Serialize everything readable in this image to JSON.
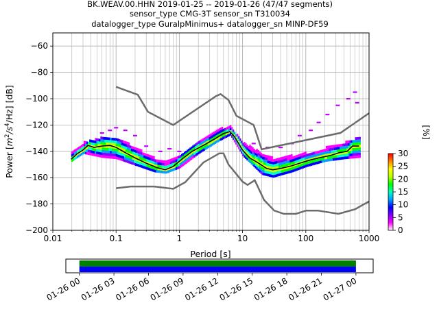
{
  "chart_data": {
    "type": "heatmap",
    "title_lines": [
      "BK.WEAV.00.HHN   2019-01-25 -- 2019-01-26  (47/47 segments)",
      "sensor_type CMG-3T sensor_sn T310034",
      "datalogger_type GuralpMinimus+ datalogger_sn MINP-DF59"
    ],
    "xlabel": "Period [s]",
    "ylabel_parts": {
      "pre": "Power [",
      "m": "m",
      "s": "/s",
      "hz": "/Hz] [dB]",
      "exp": "2",
      "exp4": "4"
    },
    "x_scale": "log",
    "xlim": [
      0.01,
      1000
    ],
    "ylim": [
      -200,
      -50
    ],
    "x_ticks": [
      {
        "value": 0.01,
        "label": "0.01"
      },
      {
        "value": 0.1,
        "label": "0.1"
      },
      {
        "value": 1,
        "label": "1"
      },
      {
        "value": 10,
        "label": "10"
      },
      {
        "value": 100,
        "label": "100"
      },
      {
        "value": 1000,
        "label": "1000"
      }
    ],
    "y_ticks": [
      {
        "value": -60,
        "label": "−60"
      },
      {
        "value": -80,
        "label": "−80"
      },
      {
        "value": -100,
        "label": "−100"
      },
      {
        "value": -120,
        "label": "−120"
      },
      {
        "value": -140,
        "label": "−140"
      },
      {
        "value": -160,
        "label": "−160"
      },
      {
        "value": -180,
        "label": "−180"
      },
      {
        "value": -200,
        "label": "−200"
      }
    ],
    "grid": true,
    "colorbar": {
      "label": "[%]",
      "range": [
        0,
        30
      ],
      "ticks": [
        {
          "value": 0,
          "label": "0"
        },
        {
          "value": 5,
          "label": "5"
        },
        {
          "value": 10,
          "label": "10"
        },
        {
          "value": 15,
          "label": "15"
        },
        {
          "value": 20,
          "label": "20"
        },
        {
          "value": 25,
          "label": "25"
        },
        {
          "value": 30,
          "label": "30"
        }
      ],
      "colors": [
        "#ffffff",
        "#ff00ff",
        "#8000ff",
        "#0000ff",
        "#00a0ff",
        "#00ffc0",
        "#00ff00",
        "#c0ff00",
        "#ffff00",
        "#ff8000",
        "#ff0000"
      ]
    },
    "noise_models": {
      "high": [
        [
          0.1,
          -91
        ],
        [
          0.22,
          -97
        ],
        [
          0.32,
          -110
        ],
        [
          0.8,
          -120
        ],
        [
          3.8,
          -98
        ],
        [
          4.5,
          -96.5
        ],
        [
          6.0,
          -101
        ],
        [
          8.0,
          -113
        ],
        [
          15,
          -120
        ],
        [
          20,
          -138.5
        ],
        [
          354,
          -126
        ],
        [
          1000,
          -111
        ]
      ],
      "low": [
        [
          0.1,
          -168
        ],
        [
          0.17,
          -166.7
        ],
        [
          0.4,
          -166.7
        ],
        [
          0.8,
          -168.5
        ],
        [
          1.24,
          -163.5
        ],
        [
          2.4,
          -148.5
        ],
        [
          4.3,
          -141.5
        ],
        [
          5.0,
          -141.5
        ],
        [
          6.0,
          -150
        ],
        [
          10,
          -163
        ],
        [
          12,
          -165.5
        ],
        [
          15.6,
          -162
        ],
        [
          21.9,
          -177
        ],
        [
          31.6,
          -185
        ],
        [
          45,
          -187.5
        ],
        [
          70,
          -187.5
        ],
        [
          101,
          -185
        ],
        [
          154,
          -185
        ],
        [
          328,
          -187.5
        ],
        [
          600,
          -184
        ],
        [
          1000,
          -178
        ]
      ]
    },
    "mean_curve": [
      [
        0.0195,
        -146
      ],
      [
        0.024,
        -142
      ],
      [
        0.03,
        -139
      ],
      [
        0.036,
        -135.5
      ],
      [
        0.045,
        -137
      ],
      [
        0.06,
        -136
      ],
      [
        0.08,
        -135.5
      ],
      [
        0.1,
        -137
      ],
      [
        0.14,
        -141
      ],
      [
        0.2,
        -145
      ],
      [
        0.3,
        -149
      ],
      [
        0.45,
        -152.5
      ],
      [
        0.6,
        -154
      ],
      [
        0.8,
        -151.5
      ],
      [
        1.1,
        -146
      ],
      [
        1.6,
        -140
      ],
      [
        2.5,
        -135
      ],
      [
        3.5,
        -131
      ],
      [
        5.0,
        -126.5
      ],
      [
        6.3,
        -125
      ],
      [
        7.5,
        -129
      ],
      [
        10,
        -139
      ],
      [
        13,
        -145
      ],
      [
        18,
        -149
      ],
      [
        24,
        -153
      ],
      [
        30,
        -154
      ],
      [
        40,
        -153
      ],
      [
        60,
        -151
      ],
      [
        80,
        -149
      ],
      [
        110,
        -147
      ],
      [
        160,
        -145
      ],
      [
        250,
        -143
      ],
      [
        340,
        -141
      ],
      [
        450,
        -140
      ],
      [
        550,
        -136
      ],
      [
        650,
        -136
      ],
      [
        700,
        -136
      ]
    ],
    "density_band": [
      [
        0.0195,
        -148,
        -140
      ],
      [
        0.03,
        -142,
        -134
      ],
      [
        0.06,
        -145,
        -130
      ],
      [
        0.1,
        -146,
        -130
      ],
      [
        0.2,
        -151,
        -138
      ],
      [
        0.4,
        -156,
        -146
      ],
      [
        0.6,
        -157,
        -149
      ],
      [
        1.0,
        -153,
        -144
      ],
      [
        2.0,
        -142,
        -132
      ],
      [
        4.0,
        -133,
        -124
      ],
      [
        6.3,
        -128,
        -122
      ],
      [
        10,
        -144,
        -134
      ],
      [
        20,
        -158,
        -142
      ],
      [
        30,
        -160,
        -146
      ],
      [
        60,
        -156,
        -144
      ],
      [
        100,
        -152,
        -142
      ],
      [
        200,
        -148,
        -138
      ],
      [
        400,
        -146,
        -134
      ],
      [
        700,
        -145,
        -130
      ]
    ],
    "scatter_high": [
      [
        0.06,
        -126
      ],
      [
        0.08,
        -124
      ],
      [
        0.1,
        -122
      ],
      [
        0.14,
        -124
      ],
      [
        0.2,
        -128
      ],
      [
        0.3,
        -136
      ],
      [
        0.5,
        -140
      ],
      [
        0.7,
        -138
      ],
      [
        1.0,
        -140
      ],
      [
        15,
        -134
      ],
      [
        25,
        -137
      ],
      [
        40,
        -137
      ],
      [
        60,
        -134
      ],
      [
        80,
        -128
      ],
      [
        120,
        -124
      ],
      [
        160,
        -118
      ],
      [
        220,
        -112
      ],
      [
        320,
        -105
      ],
      [
        470,
        -100
      ],
      [
        600,
        -95
      ],
      [
        650,
        -103
      ]
    ],
    "timeline": {
      "tick_labels": [
        "01-26 00",
        "01-26 03",
        "01-26 06",
        "01-26 09",
        "01-26 12",
        "01-26 15",
        "01-26 18",
        "01-26 21",
        "01-27 00"
      ],
      "data_fraction_start": 0.044,
      "data_fraction_end": 0.944,
      "colors": {
        "top": "#008000",
        "bottom": "#0000ff"
      }
    }
  }
}
